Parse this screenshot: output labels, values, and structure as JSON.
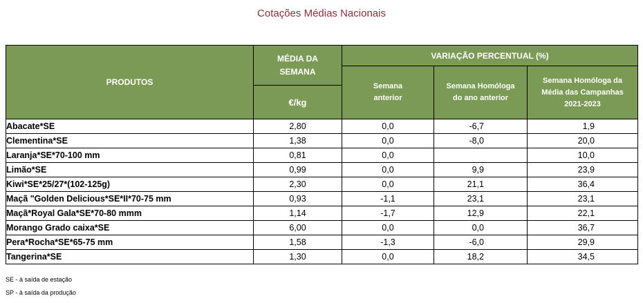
{
  "title": "Cotações Médias Nacionais",
  "headers": {
    "produtos": "PRODUTOS",
    "media_semana": "MÉDIA DA SEMANA",
    "unit": "€/kg",
    "variacao": "VARIAÇÃO PERCENTUAL (%)",
    "semana_anterior": "Semana anterior",
    "homologa_ano_anterior": "Semana Homóloga do ano anterior",
    "homologa_campanhas": "Semana Homóloga da Média das Campanhas 2021-2023"
  },
  "rows": [
    {
      "produto": "Abacate*SE",
      "media": "2,80",
      "sem_ant": "0,0",
      "hom_ano": "-6,7",
      "hom_camp": "1,9"
    },
    {
      "produto": "Clementina*SE",
      "media": "1,38",
      "sem_ant": "0,0",
      "hom_ano": "-8,0",
      "hom_camp": "20,0"
    },
    {
      "produto": "Laranja*SE*70-100 mm",
      "media": "0,81",
      "sem_ant": "0,0",
      "hom_ano": "",
      "hom_camp": "10,0"
    },
    {
      "produto": "Limão*SE",
      "media": "0,99",
      "sem_ant": "0,0",
      "hom_ano": "9,9",
      "hom_camp": "23,9"
    },
    {
      "produto": "Kiwi*SE*25/27*(102-125g)",
      "media": "2,30",
      "sem_ant": "0,0",
      "hom_ano": "21,1",
      "hom_camp": "36,4"
    },
    {
      "produto": "Maçã \"Golden Delicious*SE*II*70-75 mm",
      "media": "0,93",
      "sem_ant": "-1,1",
      "hom_ano": "23,1",
      "hom_camp": "23,1"
    },
    {
      "produto": "Maçã*Royal Gala*SE*70-80 mmm",
      "media": "1,14",
      "sem_ant": "-1,7",
      "hom_ano": "12,9",
      "hom_camp": "22,1"
    },
    {
      "produto": "Morango Grado caixa*SE",
      "media": "6,00",
      "sem_ant": "0,0",
      "hom_ano": "0,0",
      "hom_camp": "36,7"
    },
    {
      "produto": "Pera*Rocha*SE*65-75 mm",
      "media": "1,58",
      "sem_ant": "-1,3",
      "hom_ano": "-6,0",
      "hom_camp": "29,9"
    },
    {
      "produto": "Tangerina*SE",
      "media": "1,30",
      "sem_ant": "0,0",
      "hom_ano": "18,2",
      "hom_camp": "34,5"
    }
  ],
  "footnotes": [
    "SE - à saída de estação",
    "SP - à saída da produção"
  ]
}
